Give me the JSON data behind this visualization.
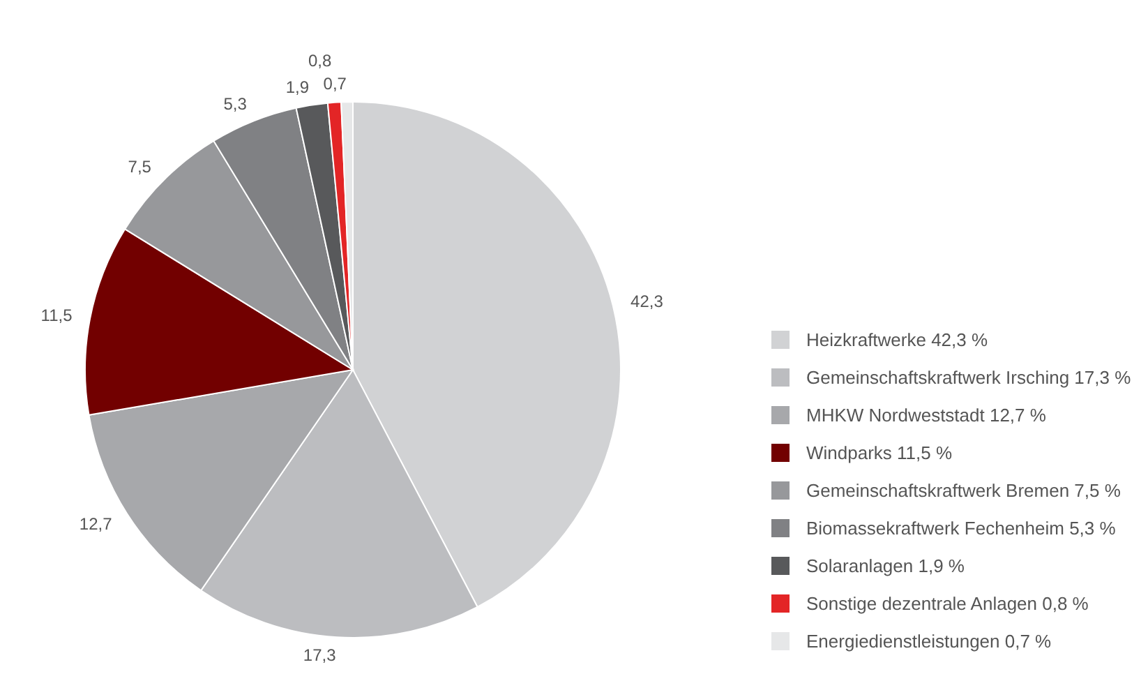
{
  "chart_data": {
    "type": "pie",
    "categories": [
      "Heizkraftwerke 42,3 %",
      "Gemeinschaftskraftwerk Irsching 17,3 %",
      "MHKW Nordweststadt 12,7 %",
      "Windparks 11,5 %",
      "Gemeinschaftskraftwerk Bremen 7,5 %",
      "Biomassekraftwerk Fechenheim 5,3 %",
      "Solaranlagen 1,9 %",
      "Sonstige dezentrale Anlagen 0,8 %",
      "Energiedienstleistungen 0,7 %"
    ],
    "values": [
      42.3,
      17.3,
      12.7,
      11.5,
      7.5,
      5.3,
      1.9,
      0.8,
      0.7
    ],
    "value_labels": [
      "42,3",
      "17,3",
      "12,7",
      "11,5",
      "7,5",
      "5,3",
      "1,9",
      "0,8",
      "0,7"
    ],
    "colors": [
      "#d1d2d4",
      "#bcbdc0",
      "#a7a8ab",
      "#720000",
      "#97989b",
      "#808184",
      "#58595b",
      "#e32526",
      "#e6e7e8"
    ],
    "legend": "right"
  }
}
